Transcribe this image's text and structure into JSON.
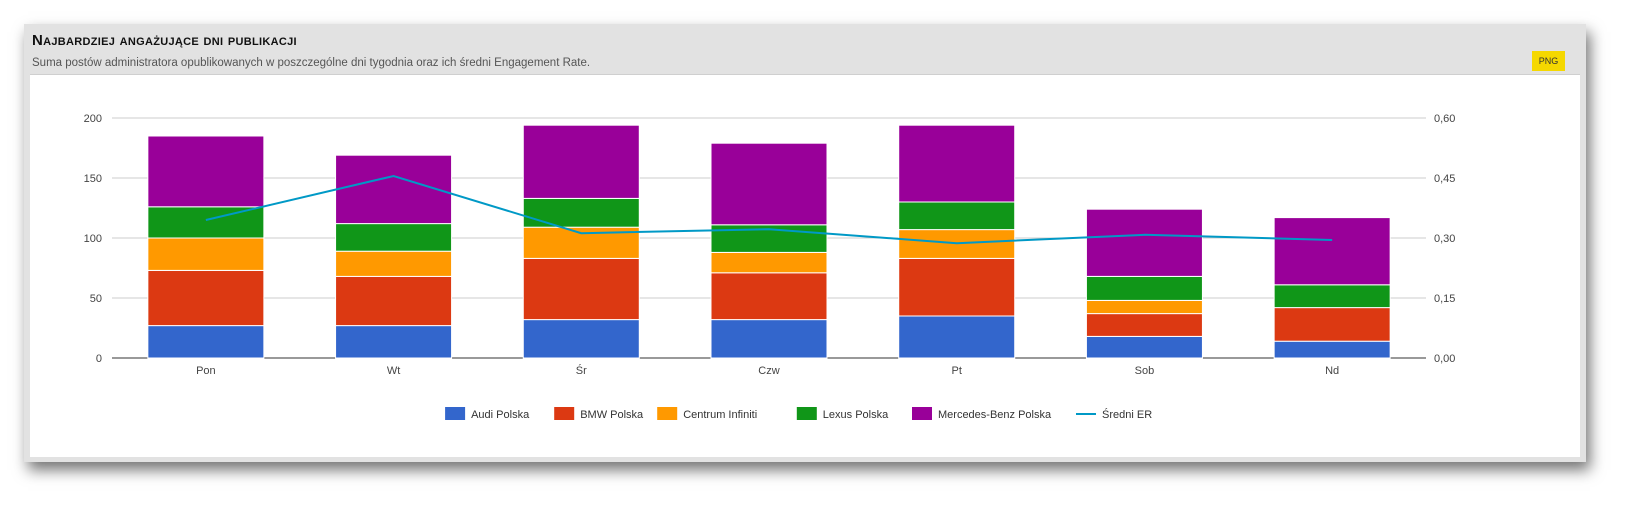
{
  "header": {
    "title": "Najbardziej angażujące dni publikacji",
    "subtitle": "Suma postów administratora opublikowanych w poszczególne dni tygodnia oraz ich średni Engagement Rate.",
    "png_label": "PNG"
  },
  "chart_data": {
    "type": "bar",
    "stacked": true,
    "categories": [
      "Pon",
      "Wt",
      "Śr",
      "Czw",
      "Pt",
      "Sob",
      "Nd"
    ],
    "series": [
      {
        "name": "Audi Polska",
        "color": "#3366cc",
        "values": [
          27,
          27,
          32,
          32,
          35,
          18,
          14
        ]
      },
      {
        "name": "BMW Polska",
        "color": "#dc3912",
        "values": [
          46,
          41,
          51,
          39,
          48,
          19,
          28
        ]
      },
      {
        "name": "Centrum Infiniti",
        "color": "#ff9900",
        "values": [
          27,
          21,
          26,
          17,
          24,
          11,
          0
        ]
      },
      {
        "name": "Lexus Polska",
        "color": "#109618",
        "values": [
          26,
          23,
          24,
          23,
          23,
          20,
          19
        ]
      },
      {
        "name": "Mercedes-Benz Polska",
        "color": "#990099",
        "values": [
          59,
          57,
          61,
          68,
          64,
          56,
          56
        ]
      }
    ],
    "line_series": {
      "name": "Średni ER",
      "color": "#0099c6",
      "values": [
        0.345,
        0.455,
        0.312,
        0.322,
        0.287,
        0.308,
        0.295
      ]
    },
    "y_left": {
      "min": 0,
      "max": 200,
      "ticks": [
        "0",
        "50",
        "100",
        "150",
        "200"
      ]
    },
    "y_right": {
      "min": 0,
      "max": 0.6,
      "ticks": [
        "0,00",
        "0,15",
        "0,30",
        "0,45",
        "0,60"
      ]
    },
    "grid": true,
    "legend_position": "bottom"
  }
}
